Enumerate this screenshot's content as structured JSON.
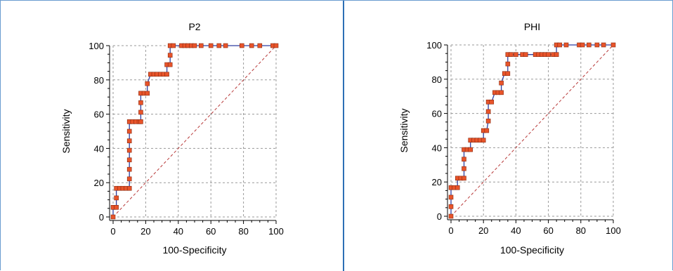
{
  "chart_data": [
    {
      "type": "line",
      "title": "P2",
      "xlabel": "100-Specificity",
      "ylabel": "Sensitivity",
      "xlim": [
        0,
        100
      ],
      "ylim": [
        0,
        100
      ],
      "xticks": [
        0,
        20,
        40,
        60,
        80,
        100
      ],
      "yticks": [
        0,
        20,
        40,
        60,
        80,
        100
      ],
      "grid": true,
      "reference_line": "diagonal",
      "colors": {
        "curve": "#2f3fa0",
        "marker": "#e8542a",
        "marker_edge": "#8a2a10",
        "reference": "#b83a3a"
      },
      "points": [
        [
          0,
          0
        ],
        [
          0,
          5.6
        ],
        [
          2,
          5.6
        ],
        [
          2,
          11.1
        ],
        [
          2,
          16.7
        ],
        [
          4,
          16.7
        ],
        [
          6,
          16.7
        ],
        [
          8,
          16.7
        ],
        [
          10,
          16.7
        ],
        [
          10,
          22.2
        ],
        [
          10,
          27.8
        ],
        [
          10,
          33.3
        ],
        [
          10,
          38.9
        ],
        [
          10,
          44.4
        ],
        [
          10,
          50
        ],
        [
          10,
          55.6
        ],
        [
          12,
          55.6
        ],
        [
          14,
          55.6
        ],
        [
          16,
          55.6
        ],
        [
          17,
          55.6
        ],
        [
          17,
          61.1
        ],
        [
          17,
          66.7
        ],
        [
          17,
          72.2
        ],
        [
          19,
          72.2
        ],
        [
          21,
          72.2
        ],
        [
          21,
          77.8
        ],
        [
          23,
          83.3
        ],
        [
          25,
          83.3
        ],
        [
          27,
          83.3
        ],
        [
          29,
          83.3
        ],
        [
          31,
          83.3
        ],
        [
          33,
          83.3
        ],
        [
          33,
          88.9
        ],
        [
          35,
          88.9
        ],
        [
          35,
          94.4
        ],
        [
          35,
          100
        ],
        [
          37,
          100
        ],
        [
          42,
          100
        ],
        [
          44,
          100
        ],
        [
          46,
          100
        ],
        [
          48,
          100
        ],
        [
          50,
          100
        ],
        [
          54,
          100
        ],
        [
          60,
          100
        ],
        [
          65,
          100
        ],
        [
          69,
          100
        ],
        [
          79,
          100
        ],
        [
          85,
          100
        ],
        [
          90,
          100
        ],
        [
          98,
          100
        ],
        [
          100,
          100
        ]
      ]
    },
    {
      "type": "line",
      "title": "PHI",
      "xlabel": "100-Specificity",
      "ylabel": "Sensitivity",
      "xlim": [
        0,
        100
      ],
      "ylim": [
        0,
        100
      ],
      "xticks": [
        0,
        20,
        40,
        60,
        80,
        100
      ],
      "yticks": [
        0,
        20,
        40,
        60,
        80,
        100
      ],
      "grid": true,
      "reference_line": "diagonal",
      "colors": {
        "curve": "#2f3fa0",
        "marker": "#e8542a",
        "marker_edge": "#8a2a10",
        "reference": "#b83a3a"
      },
      "points": [
        [
          0,
          0
        ],
        [
          0,
          5.6
        ],
        [
          0,
          11.1
        ],
        [
          0,
          16.7
        ],
        [
          2,
          16.7
        ],
        [
          4,
          16.7
        ],
        [
          4,
          22.2
        ],
        [
          6,
          22.2
        ],
        [
          8,
          22.2
        ],
        [
          8,
          27.8
        ],
        [
          8,
          33.3
        ],
        [
          8,
          38.9
        ],
        [
          10,
          38.9
        ],
        [
          12,
          38.9
        ],
        [
          12,
          44.4
        ],
        [
          14,
          44.4
        ],
        [
          16,
          44.4
        ],
        [
          18,
          44.4
        ],
        [
          20,
          44.4
        ],
        [
          20,
          50
        ],
        [
          22,
          50
        ],
        [
          23,
          55.6
        ],
        [
          23,
          61.1
        ],
        [
          23,
          66.7
        ],
        [
          25,
          66.7
        ],
        [
          27,
          72.2
        ],
        [
          29,
          72.2
        ],
        [
          31,
          72.2
        ],
        [
          31,
          77.8
        ],
        [
          33,
          83.3
        ],
        [
          35,
          83.3
        ],
        [
          35,
          88.9
        ],
        [
          35,
          94.4
        ],
        [
          37,
          94.4
        ],
        [
          40,
          94.4
        ],
        [
          44,
          94.4
        ],
        [
          46,
          94.4
        ],
        [
          52,
          94.4
        ],
        [
          54,
          94.4
        ],
        [
          56,
          94.4
        ],
        [
          58,
          94.4
        ],
        [
          60,
          94.4
        ],
        [
          63,
          94.4
        ],
        [
          65,
          94.4
        ],
        [
          65,
          100
        ],
        [
          67,
          100
        ],
        [
          71,
          100
        ],
        [
          79,
          100
        ],
        [
          81,
          100
        ],
        [
          85,
          100
        ],
        [
          90,
          100
        ],
        [
          94,
          100
        ],
        [
          100,
          100
        ]
      ]
    }
  ]
}
